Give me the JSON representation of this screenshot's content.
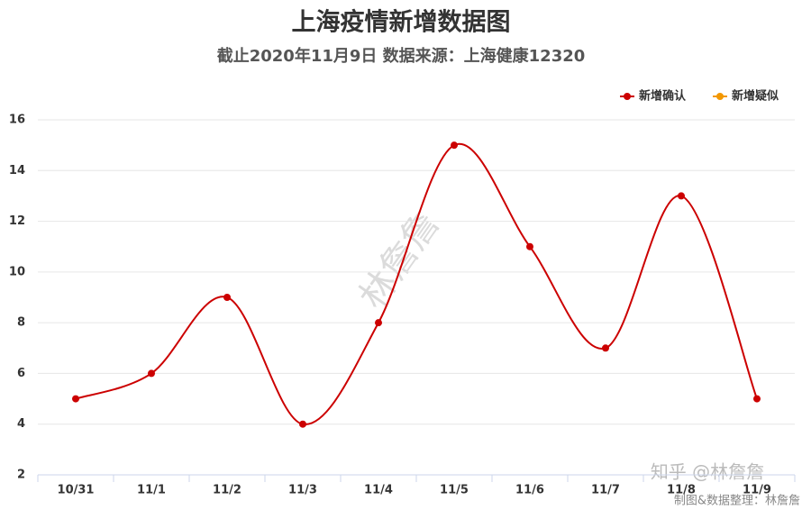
{
  "chart_data": {
    "type": "line",
    "title": "上海疫情新增数据图",
    "subtitle": "截止2020年11月9日 数据来源：上海健康12320",
    "categories": [
      "10/31",
      "11/1",
      "11/2",
      "11/3",
      "11/4",
      "11/5",
      "11/6",
      "11/7",
      "11/8",
      "11/9"
    ],
    "series": [
      {
        "name": "新增确认",
        "color": "#cc0000",
        "values": [
          5,
          6,
          9,
          4,
          8,
          15,
          11,
          7,
          13,
          5
        ]
      },
      {
        "name": "新增疑似",
        "color": "#f39800",
        "values": [
          null,
          null,
          null,
          null,
          null,
          null,
          null,
          null,
          null,
          null
        ]
      }
    ],
    "ylim": [
      2,
      16
    ],
    "yticks": [
      2,
      4,
      6,
      8,
      10,
      12,
      14,
      16
    ],
    "grid": true,
    "legend": "top-right",
    "smooth": true,
    "annotations": [
      "林詹詹",
      "知乎 @林詹詹",
      "制图&数据整理：林詹詹"
    ]
  }
}
